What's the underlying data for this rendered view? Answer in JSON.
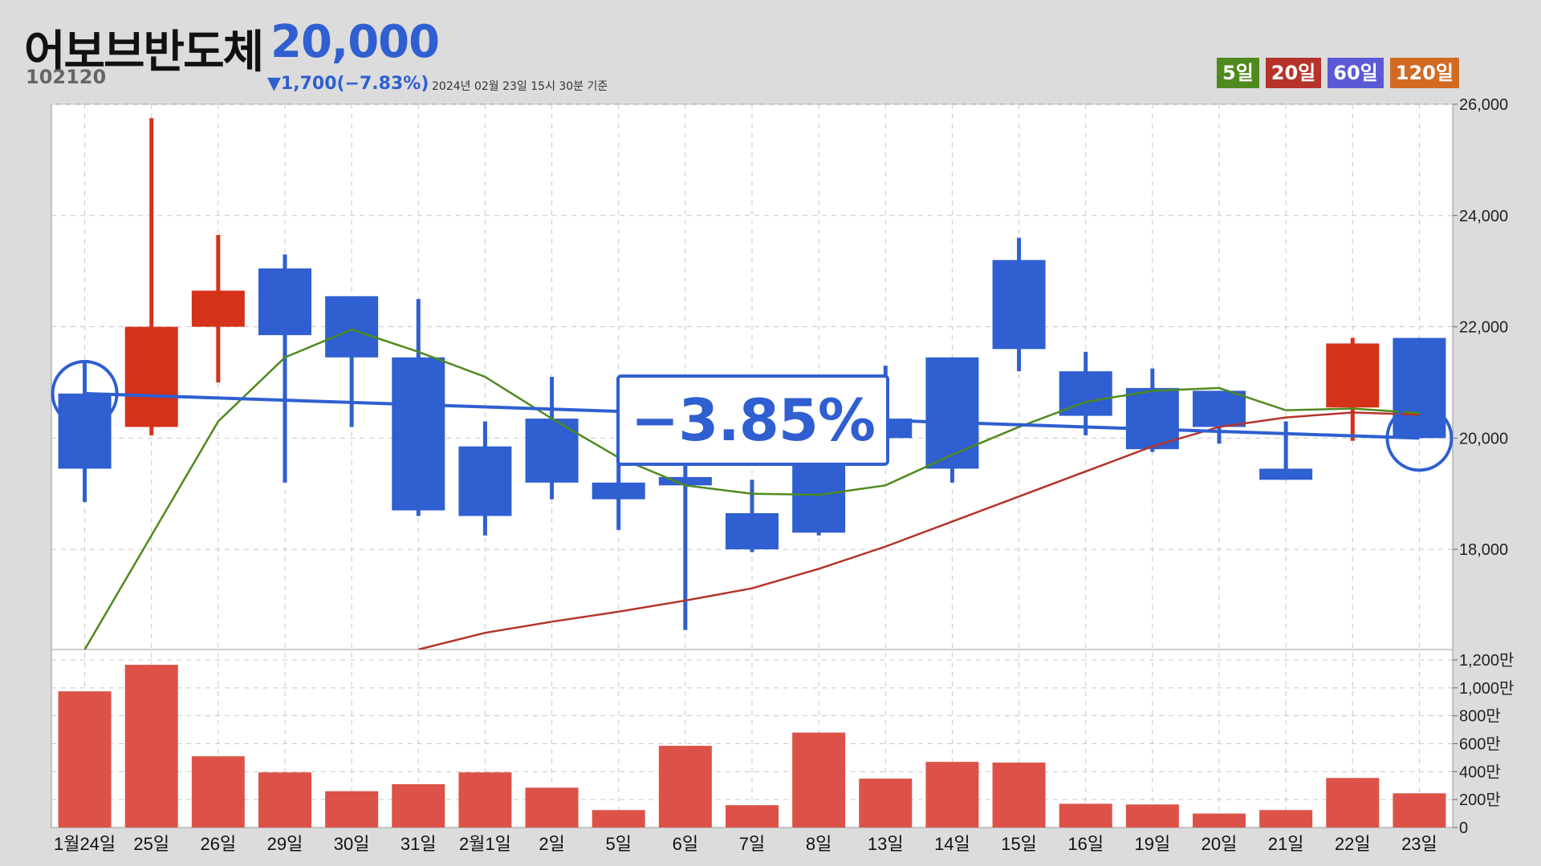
{
  "header": {
    "name": "어보브반도체",
    "price": "20,000",
    "code": "102120",
    "change": "▼1,700(−7.83%)",
    "basis": "2024년 02월 23일 15시 30분 기준"
  },
  "legend": [
    {
      "label": "5일",
      "color": "#4e8a1e"
    },
    {
      "label": "20일",
      "color": "#b5332a"
    },
    {
      "label": "60일",
      "color": "#5a5ad6"
    },
    {
      "label": "120일",
      "color": "#d26a22"
    }
  ],
  "badge": "−3.85%",
  "chart_data": {
    "type": "candlestick",
    "categories": [
      "1월24일",
      "25일",
      "26일",
      "29일",
      "30일",
      "31일",
      "2월1일",
      "2일",
      "5일",
      "6일",
      "7일",
      "8일",
      "13일",
      "14일",
      "15일",
      "16일",
      "19일",
      "20일",
      "21일",
      "22일",
      "23일"
    ],
    "candles": [
      {
        "open": 20800,
        "high": 21350,
        "low": 18850,
        "close": 19450
      },
      {
        "open": 20200,
        "high": 25750,
        "low": 20050,
        "close": 22000
      },
      {
        "open": 22000,
        "high": 23650,
        "low": 21000,
        "close": 22650
      },
      {
        "open": 23050,
        "high": 23300,
        "low": 19200,
        "close": 21850
      },
      {
        "open": 22550,
        "high": 22550,
        "low": 20200,
        "close": 21450
      },
      {
        "open": 21450,
        "high": 22500,
        "low": 18600,
        "close": 18700
      },
      {
        "open": 19850,
        "high": 20300,
        "low": 18250,
        "close": 18600
      },
      {
        "open": 20350,
        "high": 21100,
        "low": 18900,
        "close": 19200
      },
      {
        "open": 19200,
        "high": 19600,
        "low": 18350,
        "close": 18900
      },
      {
        "open": 19300,
        "high": 20350,
        "low": 16550,
        "close": 19150
      },
      {
        "open": 18650,
        "high": 19250,
        "low": 17950,
        "close": 18000
      },
      {
        "open": 19500,
        "high": 19950,
        "low": 18250,
        "close": 18300
      },
      {
        "open": 20350,
        "high": 21300,
        "low": 20000,
        "close": 20000
      },
      {
        "open": 21450,
        "high": 21450,
        "low": 19200,
        "close": 19450
      },
      {
        "open": 23200,
        "high": 23600,
        "low": 21200,
        "close": 21600
      },
      {
        "open": 21200,
        "high": 21550,
        "low": 20050,
        "close": 20400
      },
      {
        "open": 20900,
        "high": 21250,
        "low": 19750,
        "close": 19800
      },
      {
        "open": 20850,
        "high": 20850,
        "low": 19900,
        "close": 20200
      },
      {
        "open": 19450,
        "high": 20300,
        "low": 19250,
        "close": 19250
      },
      {
        "open": 20550,
        "high": 21800,
        "low": 19950,
        "close": 21700
      },
      {
        "open": 21800,
        "high": 21800,
        "low": 20000,
        "close": 20000
      }
    ],
    "ma5": [
      16200,
      18250,
      20300,
      21450,
      21950,
      21550,
      21100,
      20350,
      19650,
      19150,
      19000,
      18980,
      19150,
      19700,
      20200,
      20650,
      20850,
      20900,
      20500,
      20530,
      20450
    ],
    "ma20": [
      null,
      null,
      null,
      null,
      null,
      16200,
      16500,
      16700,
      16880,
      17080,
      17300,
      17650,
      18050,
      18500,
      18950,
      19400,
      19850,
      20200,
      20370,
      20460,
      20420
    ],
    "trend_line": {
      "from_index": 0,
      "from_value": 20800,
      "to_index": 20,
      "to_value": 20000
    },
    "volume": [
      9750000,
      11650000,
      5100000,
      3950000,
      2600000,
      3100000,
      3950000,
      2850000,
      1250000,
      5850000,
      1600000,
      6800000,
      3500000,
      4700000,
      4650000,
      1700000,
      1650000,
      1000000,
      1250000,
      3550000,
      2450000
    ],
    "price_ylim": [
      16200,
      26000
    ],
    "price_ticks": [
      "26,000",
      "24,000",
      "22,000",
      "20,000",
      "18,000"
    ],
    "volume_ylim": [
      0,
      12000000
    ],
    "volume_ticks": [
      "1,200만",
      "1,000만",
      "800만",
      "600만",
      "400만",
      "200만",
      "0"
    ],
    "grid": true
  },
  "colors": {
    "up": "#d43219",
    "down": "#2f5fd0",
    "volume": "#dc5248",
    "ma5": "#4e8a1e",
    "ma20": "#b5332a",
    "trend": "#2f5fd0"
  }
}
